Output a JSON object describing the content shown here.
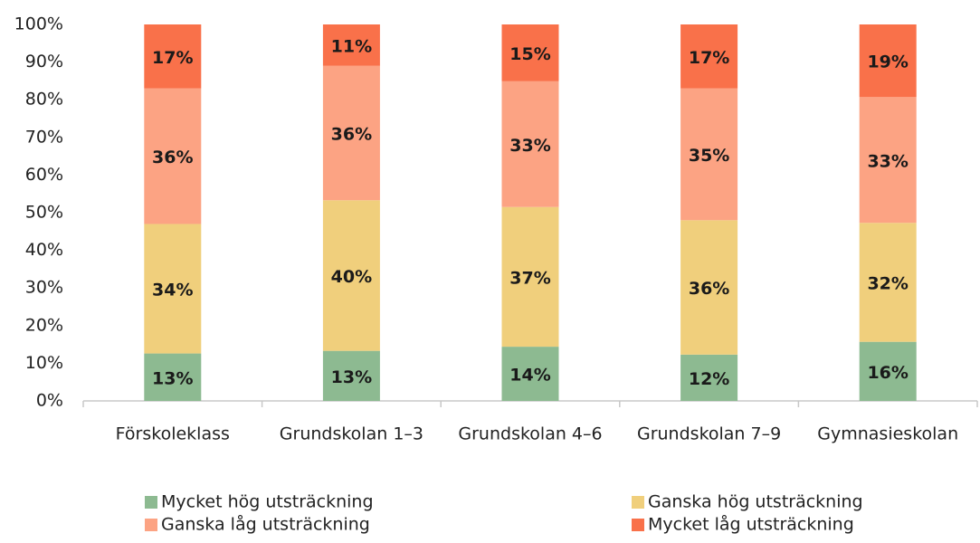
{
  "chart_data": {
    "type": "stacked_bar",
    "categories": [
      "Förskoleklass",
      "Grundskolan 1–3",
      "Grundskolan 4–6",
      "Grundskolan 7–9",
      "Gymnasieskolan"
    ],
    "series": [
      {
        "name": "Mycket hög utsträckning",
        "color": "#8dba91",
        "values": [
          12.6,
          13.3,
          14.4,
          12.3,
          15.7
        ],
        "value_labels": [
          "13%",
          "13%",
          "14%",
          "12%",
          "16%"
        ]
      },
      {
        "name": "Ganska hög utsträckning",
        "color": "#f0cf7c",
        "values": [
          34.4,
          40,
          37.1,
          35.7,
          31.6
        ],
        "value_labels": [
          "34%",
          "40%",
          "37%",
          "36%",
          "32%"
        ]
      },
      {
        "name": "Ganska låg utsträckning",
        "color": "#fca383",
        "values": [
          36,
          35.7,
          33.4,
          35,
          33.4
        ],
        "value_labels": [
          "36%",
          "36%",
          "33%",
          "35%",
          "33%"
        ]
      },
      {
        "name": "Mycket låg utsträckning",
        "color": "#f9714a",
        "values": [
          17,
          11,
          15.1,
          17,
          19.3
        ],
        "value_labels": [
          "17%",
          "11%",
          "15%",
          "17%",
          "19%"
        ]
      }
    ],
    "ylim": [
      0,
      100
    ],
    "yticks": [
      {
        "value": 0,
        "label": "0%"
      },
      {
        "value": 10,
        "label": "10%"
      },
      {
        "value": 20,
        "label": "20%"
      },
      {
        "value": 30,
        "label": "30%"
      },
      {
        "value": 40,
        "label": "40%"
      },
      {
        "value": 50,
        "label": "50%"
      },
      {
        "value": 60,
        "label": "60%"
      },
      {
        "value": 70,
        "label": "70%"
      },
      {
        "value": 80,
        "label": "80%"
      },
      {
        "value": 90,
        "label": "90%"
      },
      {
        "value": 100,
        "label": "100%"
      }
    ],
    "grid": false,
    "legend": "bottom"
  }
}
